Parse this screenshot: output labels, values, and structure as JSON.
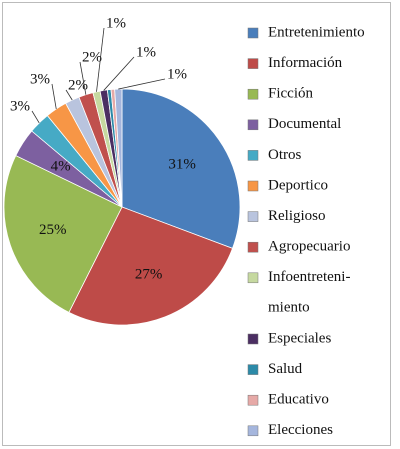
{
  "chart_data": {
    "type": "pie",
    "categories": [
      "Entretenimiento",
      "Información",
      "Ficción",
      "Documental",
      "Otros",
      "Deportico",
      "Religioso",
      "Agropecuario",
      "Infoentreteni-\nmiento",
      "Especiales",
      "Salud",
      "Educativo",
      "Elecciones"
    ],
    "values": [
      31,
      27,
      25,
      4,
      3,
      3,
      2,
      2,
      1,
      1,
      0.5,
      0.5,
      1
    ],
    "value_labels": [
      "31%",
      "27%",
      "25%",
      "4%",
      "3%",
      "3%",
      "2%",
      "2%",
      "1%",
      "1%",
      null,
      null,
      "1%"
    ],
    "colors": [
      "#4a7ebb",
      "#be4b48",
      "#98b954",
      "#7d60a0",
      "#46aac5",
      "#f79646",
      "#b9c4de",
      "#c0504d",
      "#c6d9a0",
      "#4b2e62",
      "#2c8aa8",
      "#e6a9a7",
      "#a5b6dd"
    ],
    "legend": "right"
  }
}
